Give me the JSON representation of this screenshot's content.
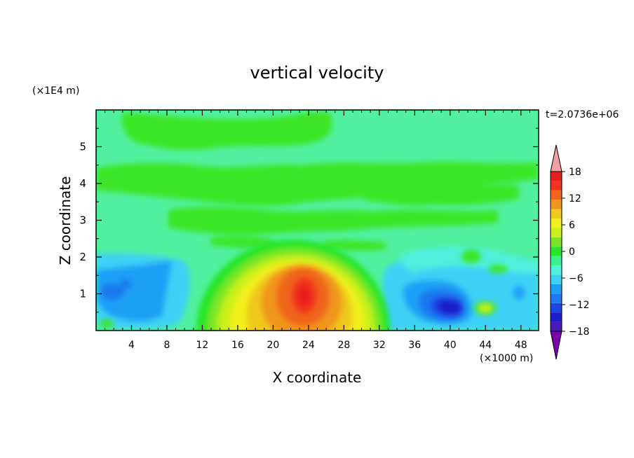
{
  "chart_data": {
    "type": "heatmap",
    "title": "vertical velocity",
    "xlabel": "X coordinate",
    "ylabel": "Z coordinate",
    "x_unit": "(×1000 m)",
    "y_unit": "(×1E4 m)",
    "time_label": "t=2.0736e+06",
    "xlim": [
      0,
      50
    ],
    "ylim": [
      0,
      6
    ],
    "x_ticks": [
      4,
      8,
      12,
      16,
      20,
      24,
      28,
      32,
      36,
      40,
      44,
      48
    ],
    "y_ticks": [
      1,
      2,
      3,
      4,
      5
    ],
    "colorbar": {
      "min": -21,
      "max": 21,
      "step": 3,
      "tick_labels": [
        18,
        12,
        6,
        0,
        -6,
        -12,
        -18
      ],
      "colors": [
        "#7a00a8",
        "#4a17b8",
        "#1e1ec8",
        "#1e46e6",
        "#1e78f0",
        "#1ea0f5",
        "#3cd2f5",
        "#50f0dc",
        "#3cf08c",
        "#28e628",
        "#78e628",
        "#c8f01e",
        "#f0f01e",
        "#f0c81e",
        "#f0961e",
        "#f0641e",
        "#f0321e",
        "#e61e1e",
        "#f0a0a0"
      ]
    },
    "features": [
      {
        "name": "updraft core",
        "x": 23.7,
        "z": 1.0,
        "value": 19.5
      },
      {
        "name": "downdraft core",
        "x": 40.8,
        "z": 0.65,
        "value": -13.5
      },
      {
        "name": "left downdraft",
        "x": 4.0,
        "z": 1.0,
        "value": -8.0
      }
    ]
  }
}
